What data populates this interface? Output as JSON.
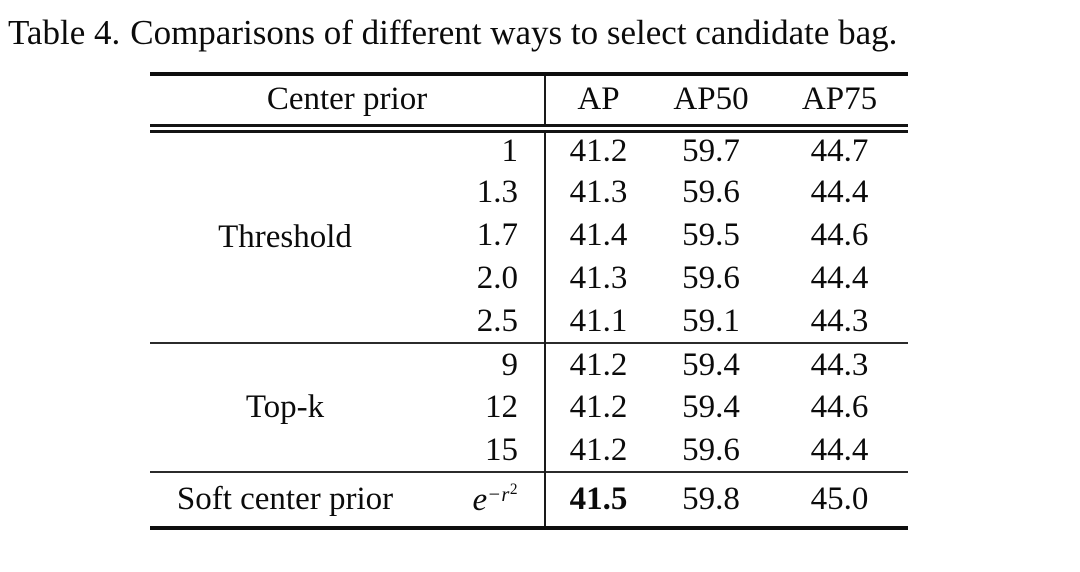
{
  "caption": {
    "label": "Table 4.",
    "text": "Comparisons of different ways to select candidate bag."
  },
  "table": {
    "columns": {
      "group": "Center prior",
      "ap": "AP",
      "ap50": "AP50",
      "ap75": "AP75"
    },
    "groups": [
      {
        "label": "Threshold",
        "rows": [
          {
            "param": "1",
            "ap": "41.2",
            "ap50": "59.7",
            "ap75": "44.7"
          },
          {
            "param": "1.3",
            "ap": "41.3",
            "ap50": "59.6",
            "ap75": "44.4"
          },
          {
            "param": "1.7",
            "ap": "41.4",
            "ap50": "59.5",
            "ap75": "44.6"
          },
          {
            "param": "2.0",
            "ap": "41.3",
            "ap50": "59.6",
            "ap75": "44.4"
          },
          {
            "param": "2.5",
            "ap": "41.1",
            "ap50": "59.1",
            "ap75": "44.3"
          }
        ]
      },
      {
        "label": "Top-k",
        "rows": [
          {
            "param": "9",
            "ap": "41.2",
            "ap50": "59.4",
            "ap75": "44.3"
          },
          {
            "param": "12",
            "ap": "41.2",
            "ap50": "59.4",
            "ap75": "44.6"
          },
          {
            "param": "15",
            "ap": "41.2",
            "ap50": "59.6",
            "ap75": "44.4"
          }
        ]
      },
      {
        "label": "Soft center prior",
        "param_math": {
          "base": "e",
          "exp": "−r",
          "exp_power": "2"
        },
        "rows": [
          {
            "ap": "41.5",
            "ap50": "59.8",
            "ap75": "45.0"
          }
        ]
      }
    ]
  }
}
